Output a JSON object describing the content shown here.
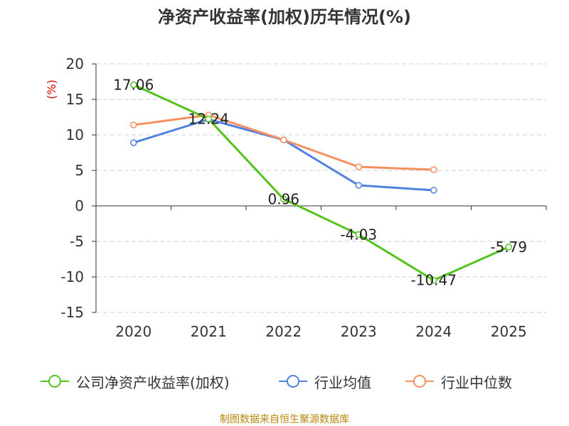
{
  "title": "净资产收益率(加权)历年情况(%)",
  "source": "制图数据来自恒生聚源数据库",
  "chart_data": {
    "type": "line",
    "title": "净资产收益率(加权)历年情况(%)",
    "ylabel": "(%)",
    "ylim": [
      -15,
      20
    ],
    "yticks": [
      20,
      15,
      10,
      5,
      0,
      -5,
      -10,
      -15
    ],
    "categories": [
      "2020",
      "2021",
      "2022",
      "2023",
      "2024",
      "2025"
    ],
    "grid": true,
    "legend_position": "bottom",
    "series": [
      {
        "name": "公司净资产收益率(加权)",
        "color": "#52c41a",
        "values": [
          17.06,
          12.24,
          0.96,
          -4.03,
          -10.47,
          -5.79
        ],
        "labels": [
          "17.06",
          "12.24",
          "0.96",
          "-4.03",
          "-10.47",
          "-5.79"
        ]
      },
      {
        "name": "行业均值",
        "color": "#5081e0",
        "values": [
          8.9,
          12.2,
          9.3,
          2.9,
          2.2,
          null
        ]
      },
      {
        "name": "行业中位数",
        "color": "#f79060",
        "values": [
          11.4,
          12.8,
          9.3,
          5.5,
          5.1,
          null
        ]
      }
    ]
  }
}
